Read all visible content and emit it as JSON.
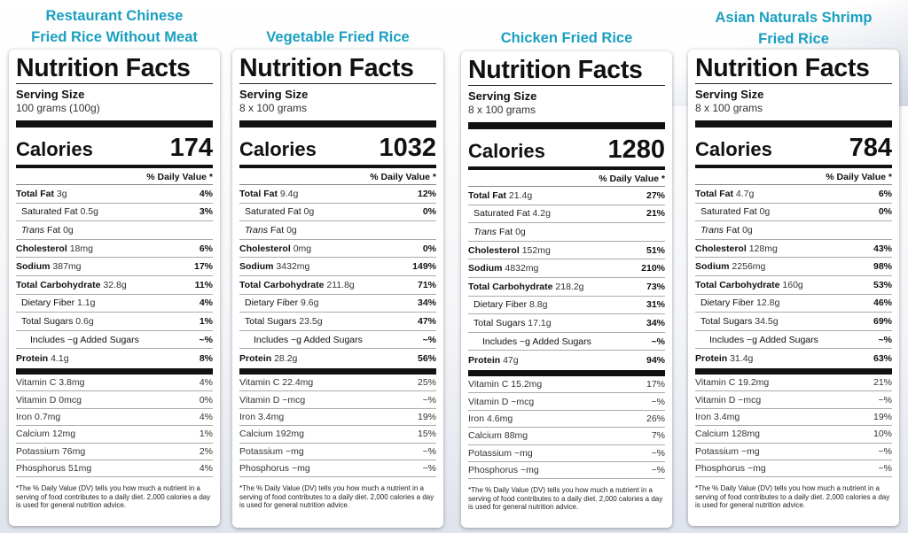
{
  "labels": [
    {
      "title": "Restaurant Chinese Fried Rice Without Meat",
      "title_lines": [
        "Restaurant Chinese",
        "Fried Rice Without Meat"
      ],
      "nf": "Nutrition Facts",
      "serving_label": "Serving Size",
      "serving": "100 grams (100g)",
      "calories_label": "Calories",
      "calories": "174",
      "dv_header": "% Daily Value *",
      "total_fat": "3g",
      "total_fat_pct": "4%",
      "sat_fat": "0.5g",
      "sat_fat_pct": "3%",
      "trans_fat": "0g",
      "cholesterol": "18mg",
      "cholesterol_pct": "6%",
      "sodium": "387mg",
      "sodium_pct": "17%",
      "carb": "32.8g",
      "carb_pct": "11%",
      "fiber": "1.1g",
      "fiber_pct": "4%",
      "sugars": "0.6g",
      "sugars_pct": "1%",
      "added_sugars_pct": "~%",
      "protein": "4.1g",
      "protein_pct": "8%",
      "vitc": "3.8mg",
      "vitc_pct": "4%",
      "vitd": "0mcg",
      "vitd_pct": "0%",
      "iron": "0.7mg",
      "iron_pct": "4%",
      "calcium": "12mg",
      "calcium_pct": "1%",
      "potassium": "76mg",
      "potassium_pct": "2%",
      "phosphorus": "51mg",
      "phosphorus_pct": "4%"
    },
    {
      "title": "Vegetable Fried Rice",
      "title_lines": [
        "Vegetable Fried Rice",
        ""
      ],
      "nf": "Nutrition Facts",
      "serving_label": "Serving Size",
      "serving": "8 x 100 grams",
      "calories_label": "Calories",
      "calories": "1032",
      "dv_header": "% Daily Value *",
      "total_fat": "9.4g",
      "total_fat_pct": "12%",
      "sat_fat": "0g",
      "sat_fat_pct": "0%",
      "trans_fat": "0g",
      "cholesterol": "0mg",
      "cholesterol_pct": "0%",
      "sodium": "3432mg",
      "sodium_pct": "149%",
      "carb": "211.8g",
      "carb_pct": "71%",
      "fiber": "9.6g",
      "fiber_pct": "34%",
      "sugars": "23.5g",
      "sugars_pct": "47%",
      "added_sugars_pct": "~%",
      "protein": "28.2g",
      "protein_pct": "56%",
      "vitc": "22.4mg",
      "vitc_pct": "25%",
      "vitd": "~mcg",
      "vitd_pct": "~%",
      "iron": "3.4mg",
      "iron_pct": "19%",
      "calcium": "192mg",
      "calcium_pct": "15%",
      "potassium": "~mg",
      "potassium_pct": "~%",
      "phosphorus": "~mg",
      "phosphorus_pct": "~%"
    },
    {
      "title": "Chicken Fried Rice",
      "title_lines": [
        "Chicken Fried Rice",
        ""
      ],
      "nf": "Nutrition Facts",
      "serving_label": "Serving Size",
      "serving": "8 x 100 grams",
      "calories_label": "Calories",
      "calories": "1280",
      "dv_header": "% Daily Value *",
      "total_fat": "21.4g",
      "total_fat_pct": "27%",
      "sat_fat": "4.2g",
      "sat_fat_pct": "21%",
      "trans_fat": "0g",
      "cholesterol": "152mg",
      "cholesterol_pct": "51%",
      "sodium": "4832mg",
      "sodium_pct": "210%",
      "carb": "218.2g",
      "carb_pct": "73%",
      "fiber": "8.8g",
      "fiber_pct": "31%",
      "sugars": "17.1g",
      "sugars_pct": "34%",
      "added_sugars_pct": "~%",
      "protein": "47g",
      "protein_pct": "94%",
      "vitc": "15.2mg",
      "vitc_pct": "17%",
      "vitd": "~mcg",
      "vitd_pct": "~%",
      "iron": "4.6mg",
      "iron_pct": "26%",
      "calcium": "88mg",
      "calcium_pct": "7%",
      "potassium": "~mg",
      "potassium_pct": "~%",
      "phosphorus": "~mg",
      "phosphorus_pct": "~%"
    },
    {
      "title": "Asian Naturals Shrimp Fried Rice",
      "title_lines": [
        "Asian Naturals Shrimp",
        "Fried Rice"
      ],
      "nf": "Nutrition Facts",
      "serving_label": "Serving Size",
      "serving": "8 x 100 grams",
      "calories_label": "Calories",
      "calories": "784",
      "dv_header": "% Daily Value *",
      "total_fat": "4.7g",
      "total_fat_pct": "6%",
      "sat_fat": "0g",
      "sat_fat_pct": "0%",
      "trans_fat": "0g",
      "cholesterol": "128mg",
      "cholesterol_pct": "43%",
      "sodium": "2256mg",
      "sodium_pct": "98%",
      "carb": "160g",
      "carb_pct": "53%",
      "fiber": "12.8g",
      "fiber_pct": "46%",
      "sugars": "34.5g",
      "sugars_pct": "69%",
      "added_sugars_pct": "~%",
      "protein": "31.4g",
      "protein_pct": "63%",
      "vitc": "19.2mg",
      "vitc_pct": "21%",
      "vitd": "~mcg",
      "vitd_pct": "~%",
      "iron": "3.4mg",
      "iron_pct": "19%",
      "calcium": "128mg",
      "calcium_pct": "10%",
      "potassium": "~mg",
      "potassium_pct": "~%",
      "phosphorus": "~mg",
      "phosphorus_pct": "~%"
    }
  ],
  "row_names": {
    "total_fat": "Total Fat",
    "sat_fat": "Saturated Fat",
    "trans_fat_a": "Trans",
    "trans_fat_b": " Fat",
    "cholesterol": "Cholesterol",
    "sodium": "Sodium",
    "carb": "Total Carbohydrate",
    "fiber": "Dietary Fiber",
    "sugars": "Total Sugars",
    "added_sugars": "Includes ~g Added Sugars",
    "protein": "Protein",
    "vitc": "Vitamin C",
    "vitd": "Vitamin D",
    "iron": "Iron",
    "calcium": "Calcium",
    "potassium": "Potassium",
    "phosphorus": "Phosphorus"
  },
  "footnote": "*The % Daily Value (DV) tells you how much a nutrient in a serving of food contributes to a daily diet. 2,000 calories a day is used for general nutrition advice.",
  "colors": {
    "title": "#1aa0c0"
  }
}
